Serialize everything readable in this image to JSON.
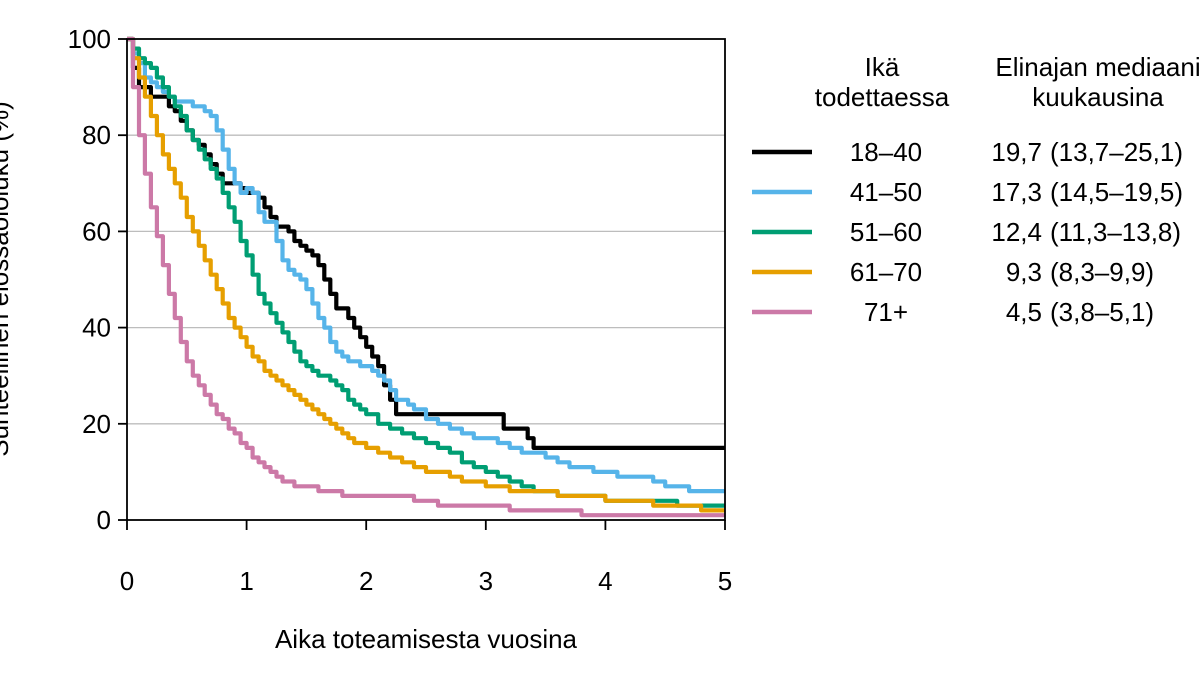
{
  "chart_data": {
    "type": "line",
    "title": "",
    "xlabel": "Aika toteamisesta vuosina",
    "ylabel": "Suhteellinen elossaololuku (%)",
    "xlim": [
      0,
      5
    ],
    "ylim": [
      0,
      100
    ],
    "xticks": [
      "0",
      "1",
      "2",
      "3",
      "4",
      "5"
    ],
    "yticks": [
      "0",
      "20",
      "40",
      "60",
      "80",
      "100"
    ],
    "grid": "horizontal",
    "legend_placement": "right",
    "legend": {
      "header_group": "Ikä todettaessa",
      "header_group_lines": [
        "Ikä",
        "todettaessa"
      ],
      "header_median": "Elinajan mediaani kuukausina",
      "header_median_lines": [
        "Elinajan mediaani",
        "kuukausina"
      ]
    },
    "series": [
      {
        "name": "18–40",
        "median": "19,7",
        "ci": "(13,7–25,1)",
        "color": "#000000",
        "x": [
          0,
          0.05,
          0.1,
          0.2,
          0.3,
          0.35,
          0.4,
          0.45,
          0.5,
          0.55,
          0.6,
          0.65,
          0.7,
          0.75,
          0.8,
          0.85,
          0.9,
          0.95,
          1.0,
          1.05,
          1.1,
          1.15,
          1.2,
          1.25,
          1.3,
          1.35,
          1.4,
          1.45,
          1.5,
          1.55,
          1.6,
          1.65,
          1.7,
          1.75,
          1.8,
          1.85,
          1.9,
          1.95,
          2.0,
          2.05,
          2.1,
          2.15,
          2.2,
          2.25,
          2.3,
          2.35,
          2.4,
          2.5,
          2.6,
          2.7,
          2.8,
          2.9,
          3.0,
          3.05,
          3.1,
          3.15,
          3.2,
          3.3,
          3.35,
          3.4,
          3.45,
          3.5,
          3.6,
          3.8,
          4.0,
          4.5,
          5.0
        ],
        "y": [
          100,
          94,
          90,
          88,
          88,
          86,
          85,
          83,
          81,
          79,
          78,
          76,
          74,
          72,
          70,
          70,
          70,
          69,
          68,
          68,
          67,
          65,
          63,
          61,
          61,
          60,
          58,
          57,
          56,
          55,
          53,
          50,
          47,
          44,
          44,
          42,
          40,
          38,
          36,
          34,
          32,
          28,
          25,
          22,
          22,
          22,
          22,
          22,
          22,
          22,
          22,
          22,
          22,
          22,
          22,
          19,
          19,
          19,
          17,
          15,
          15,
          15,
          15,
          15,
          15,
          15,
          15
        ]
      },
      {
        "name": "41–50",
        "median": "17,3",
        "ci": "(14,5–19,5)",
        "color": "#56B4E9",
        "x": [
          0,
          0.05,
          0.1,
          0.15,
          0.2,
          0.25,
          0.3,
          0.35,
          0.4,
          0.45,
          0.5,
          0.55,
          0.6,
          0.65,
          0.7,
          0.75,
          0.8,
          0.85,
          0.9,
          0.95,
          1.0,
          1.05,
          1.1,
          1.15,
          1.2,
          1.25,
          1.3,
          1.35,
          1.4,
          1.45,
          1.5,
          1.55,
          1.6,
          1.65,
          1.7,
          1.75,
          1.8,
          1.85,
          1.9,
          1.95,
          2.0,
          2.05,
          2.1,
          2.15,
          2.2,
          2.25,
          2.3,
          2.35,
          2.4,
          2.5,
          2.6,
          2.7,
          2.8,
          2.9,
          3.0,
          3.1,
          3.2,
          3.3,
          3.4,
          3.5,
          3.6,
          3.7,
          3.8,
          3.9,
          4.0,
          4.1,
          4.2,
          4.3,
          4.4,
          4.5,
          4.6,
          4.7,
          4.8,
          4.9,
          5.0
        ],
        "y": [
          100,
          97,
          95,
          92,
          91,
          90,
          89,
          88,
          87,
          87,
          87,
          86,
          86,
          85,
          84,
          81,
          77,
          73,
          70,
          68,
          69,
          68,
          64,
          62,
          62,
          58,
          54,
          52,
          51,
          50,
          48,
          45,
          42,
          40,
          37,
          35,
          34,
          33,
          33,
          32,
          32,
          31,
          30,
          29,
          27,
          25,
          25,
          24,
          23,
          21,
          20,
          19,
          18,
          17,
          17,
          16,
          15,
          14,
          14,
          13,
          12,
          11,
          11,
          10,
          10,
          9,
          9,
          9,
          8,
          7,
          7,
          6,
          6,
          6,
          6
        ]
      },
      {
        "name": "51–60",
        "median": "12,4",
        "ci": "(11,3–13,8)",
        "color": "#009E73",
        "x": [
          0,
          0.05,
          0.1,
          0.15,
          0.2,
          0.25,
          0.3,
          0.35,
          0.4,
          0.45,
          0.5,
          0.55,
          0.6,
          0.65,
          0.7,
          0.75,
          0.8,
          0.85,
          0.9,
          0.95,
          1.0,
          1.05,
          1.1,
          1.15,
          1.2,
          1.25,
          1.3,
          1.35,
          1.4,
          1.45,
          1.5,
          1.55,
          1.6,
          1.65,
          1.7,
          1.75,
          1.8,
          1.85,
          1.9,
          1.95,
          2.0,
          2.1,
          2.2,
          2.3,
          2.4,
          2.5,
          2.6,
          2.7,
          2.8,
          2.9,
          3.0,
          3.1,
          3.2,
          3.3,
          3.4,
          3.5,
          3.6,
          3.7,
          3.8,
          3.9,
          4.0,
          4.2,
          4.4,
          4.6,
          4.8,
          5.0
        ],
        "y": [
          100,
          98,
          96,
          95,
          94,
          92,
          90,
          88,
          86,
          84,
          81,
          79,
          77,
          75,
          73,
          71,
          68,
          65,
          62,
          58,
          55,
          51,
          47,
          45,
          43,
          41,
          39,
          37,
          35,
          33,
          32,
          31,
          30,
          30,
          29,
          28,
          27,
          25,
          24,
          23,
          22,
          20,
          19,
          18,
          17,
          16,
          15,
          14,
          12,
          11,
          10,
          9,
          8,
          7,
          6,
          6,
          5,
          5,
          5,
          5,
          4,
          4,
          4,
          3,
          3,
          3
        ]
      },
      {
        "name": "61–70",
        "median": "9,3",
        "ci": "(8,3–9,9)",
        "color": "#E69F00",
        "x": [
          0,
          0.05,
          0.1,
          0.15,
          0.2,
          0.25,
          0.3,
          0.35,
          0.4,
          0.45,
          0.5,
          0.55,
          0.6,
          0.65,
          0.7,
          0.75,
          0.8,
          0.85,
          0.9,
          0.95,
          1.0,
          1.05,
          1.1,
          1.15,
          1.2,
          1.25,
          1.3,
          1.35,
          1.4,
          1.45,
          1.5,
          1.55,
          1.6,
          1.65,
          1.7,
          1.75,
          1.8,
          1.85,
          1.9,
          1.95,
          2.0,
          2.1,
          2.2,
          2.3,
          2.4,
          2.5,
          2.6,
          2.7,
          2.8,
          2.9,
          3.0,
          3.2,
          3.4,
          3.6,
          3.8,
          4.0,
          4.2,
          4.4,
          4.6,
          4.8,
          5.0
        ],
        "y": [
          100,
          96,
          92,
          88,
          84,
          80,
          76,
          73,
          70,
          67,
          63,
          60,
          57,
          54,
          51,
          48,
          45,
          42,
          40,
          38,
          36,
          34,
          33,
          31,
          30,
          29,
          28,
          27,
          26,
          25,
          24,
          23,
          22,
          21,
          20,
          19,
          18,
          17,
          16,
          16,
          15,
          14,
          13,
          12,
          11,
          10,
          10,
          9,
          8,
          8,
          7,
          6,
          6,
          5,
          5,
          4,
          4,
          3,
          3,
          2,
          2
        ]
      },
      {
        "name": "71+",
        "median": "4,5",
        "ci": "(3,8–5,1)",
        "color": "#CC79A7",
        "x": [
          0,
          0.05,
          0.1,
          0.15,
          0.2,
          0.25,
          0.3,
          0.35,
          0.4,
          0.45,
          0.5,
          0.55,
          0.6,
          0.65,
          0.7,
          0.75,
          0.8,
          0.85,
          0.9,
          0.95,
          1.0,
          1.05,
          1.1,
          1.15,
          1.2,
          1.25,
          1.3,
          1.35,
          1.4,
          1.5,
          1.6,
          1.7,
          1.8,
          1.9,
          2.0,
          2.2,
          2.4,
          2.6,
          2.8,
          3.0,
          3.2,
          3.4,
          3.6,
          3.8,
          4.0,
          4.2,
          4.4,
          4.6,
          4.8,
          5.0
        ],
        "y": [
          100,
          90,
          80,
          72,
          65,
          59,
          53,
          47,
          42,
          37,
          33,
          30,
          28,
          26,
          24,
          22,
          21,
          19,
          18,
          16,
          15,
          13,
          12,
          11,
          10,
          9,
          8,
          8,
          7,
          7,
          6,
          6,
          5,
          5,
          5,
          5,
          4,
          3,
          3,
          3,
          2,
          2,
          2,
          1,
          1,
          1,
          1,
          1,
          1,
          1
        ]
      }
    ]
  }
}
